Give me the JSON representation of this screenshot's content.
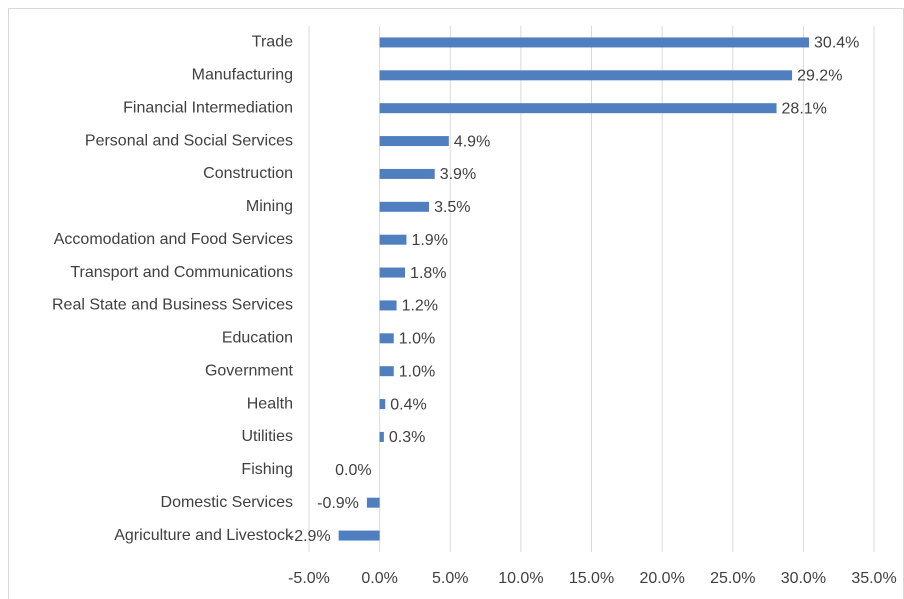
{
  "chart_data": {
    "type": "barh",
    "categories": [
      "Trade",
      "Manufacturing",
      "Financial Intermediation",
      "Personal and Social Services",
      "Construction",
      "Mining",
      "Accomodation and Food Services",
      "Transport and Communications",
      "Real State and Business Services",
      "Education",
      "Government",
      "Health",
      "Utilities",
      "Fishing",
      "Domestic Services",
      "Agriculture and Livestock"
    ],
    "values": [
      30.4,
      29.2,
      28.1,
      4.9,
      3.9,
      3.5,
      1.9,
      1.8,
      1.2,
      1.0,
      1.0,
      0.4,
      0.3,
      0.0,
      -0.9,
      -2.9
    ],
    "value_labels": [
      "30.4%",
      "29.2%",
      "28.1%",
      "4.9%",
      "3.9%",
      "3.5%",
      "1.9%",
      "1.8%",
      "1.2%",
      "1.0%",
      "1.0%",
      "0.4%",
      "0.3%",
      "0.0%",
      "-0.9%",
      "-2.9%"
    ],
    "color": "#4f7fbe",
    "xlim": [
      -5,
      35
    ],
    "xticks": [
      {
        "value": -5,
        "label": "-5.0%"
      },
      {
        "value": 0,
        "label": "0.0%"
      },
      {
        "value": 5,
        "label": "5.0%"
      },
      {
        "value": 10,
        "label": "10.0%"
      },
      {
        "value": 15,
        "label": "15.0%"
      },
      {
        "value": 20,
        "label": "20.0%"
      },
      {
        "value": 25,
        "label": "25.0%"
      },
      {
        "value": 30,
        "label": "30.0%"
      },
      {
        "value": 35,
        "label": "35.0%"
      }
    ],
    "grid": true
  }
}
